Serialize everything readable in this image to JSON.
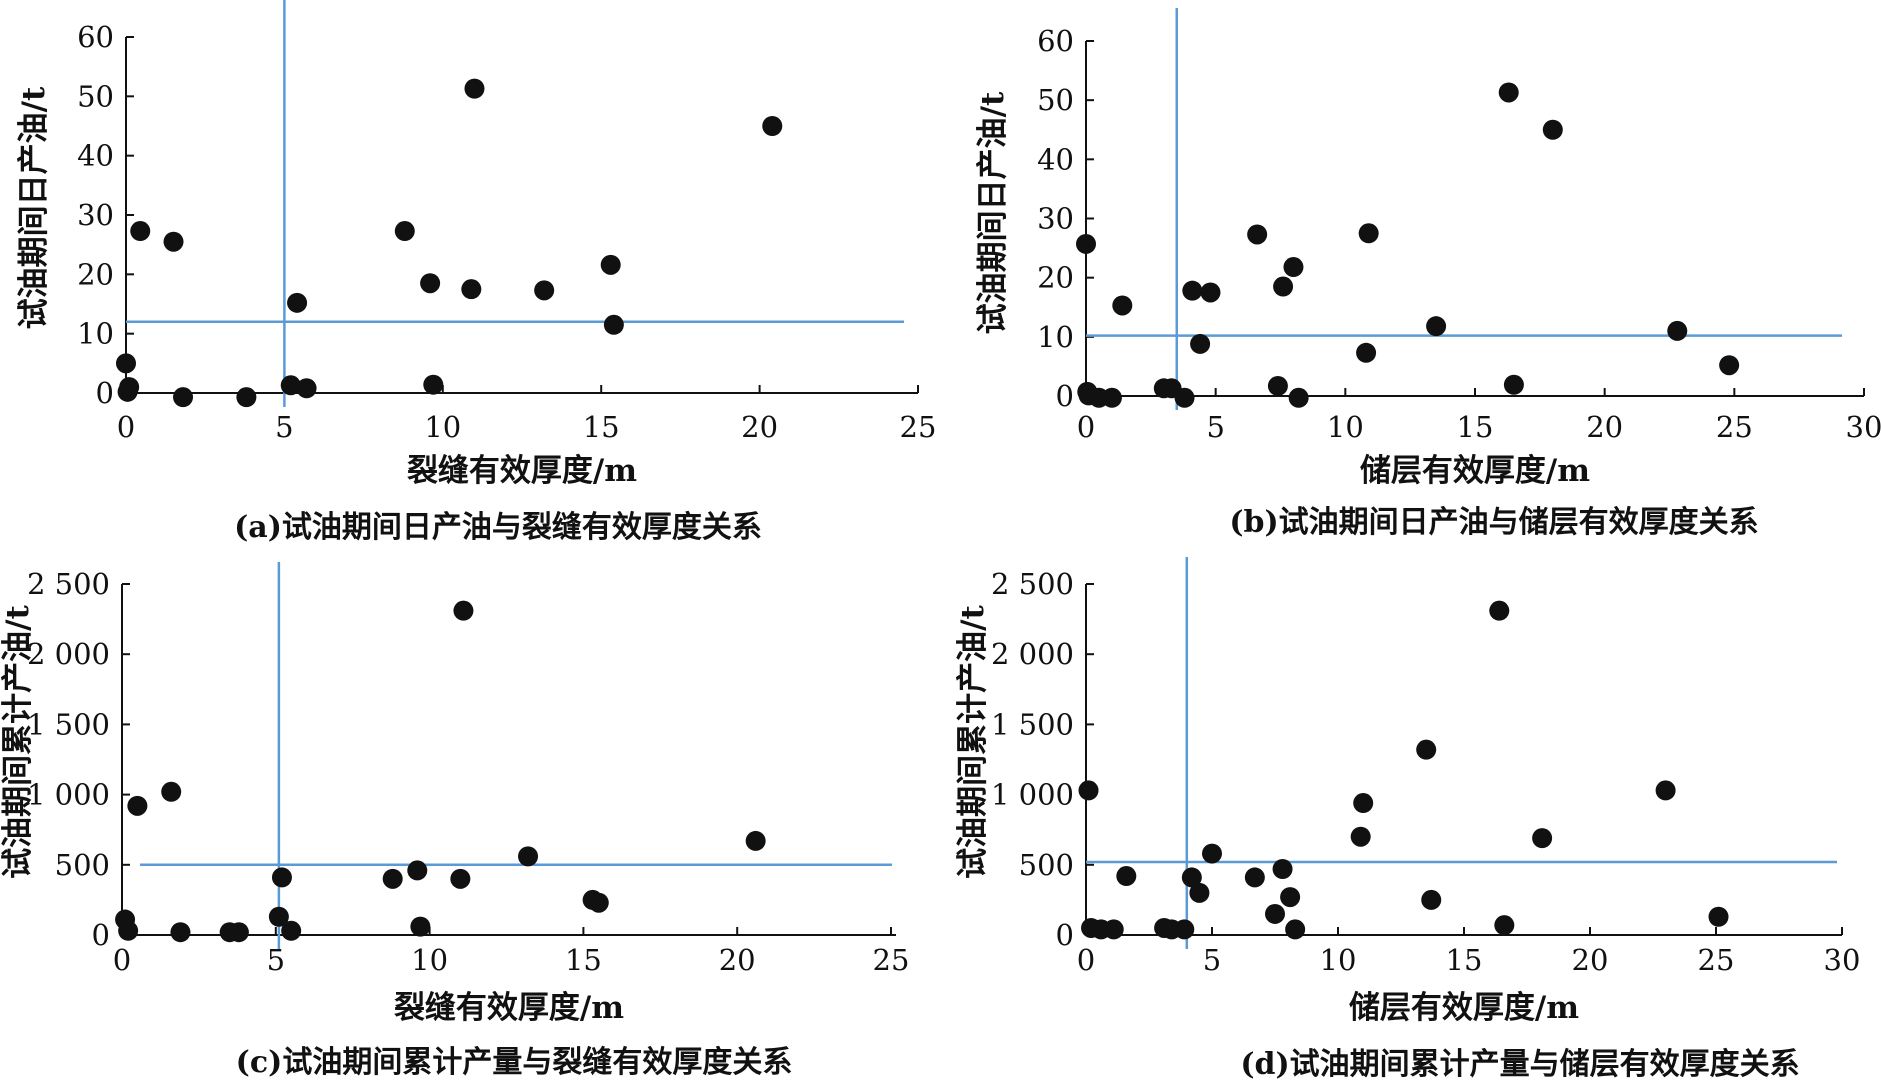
{
  "colors": {
    "points": "#111111",
    "axes": "#111111",
    "reference_lines": "#5b9bd5",
    "background": "#ffffff"
  },
  "chart_data": [
    {
      "id": "a",
      "type": "scatter",
      "caption": "(a)试油期间日产油与裂缝有效厚度关系",
      "xlabel": "裂缝有效厚度/m",
      "ylabel": "试油期间日产油/t",
      "xlim": [
        0,
        25
      ],
      "ylim": [
        0,
        60
      ],
      "x_ticks": [
        0,
        5,
        10,
        15,
        20,
        25
      ],
      "y_ticks": [
        0,
        10,
        20,
        30,
        40,
        50,
        60
      ],
      "x_tick_labels": [
        "0",
        "5",
        "10",
        "15",
        "20",
        "25"
      ],
      "y_tick_labels": [
        "0",
        "10",
        "20",
        "30",
        "40",
        "50",
        "60"
      ],
      "grid": false,
      "reference_lines": {
        "x": 5.0,
        "y": 12.0
      },
      "x": [
        0.0,
        0.05,
        0.1,
        0.45,
        1.5,
        1.8,
        3.8,
        5.2,
        5.4,
        5.7,
        8.8,
        9.6,
        9.7,
        10.9,
        11.0,
        13.2,
        15.3,
        15.4,
        20.4
      ],
      "y": [
        5.0,
        0.2,
        1.0,
        27.3,
        25.5,
        -0.7,
        -0.7,
        1.3,
        15.2,
        0.8,
        27.3,
        18.5,
        1.4,
        17.5,
        51.3,
        17.3,
        21.6,
        11.5,
        45.0
      ]
    },
    {
      "id": "b",
      "type": "scatter",
      "caption": "(b)试油期间日产油与储层有效厚度关系",
      "xlabel": "储层有效厚度/m",
      "ylabel": "试油期间日产油/t",
      "xlim": [
        0,
        30
      ],
      "ylim": [
        0,
        60
      ],
      "x_ticks": [
        0,
        5,
        10,
        15,
        20,
        25,
        30
      ],
      "y_ticks": [
        0,
        10,
        20,
        30,
        40,
        50,
        60
      ],
      "x_tick_labels": [
        "0",
        "5",
        "10",
        "15",
        "20",
        "25",
        "30"
      ],
      "y_tick_labels": [
        "0",
        "10",
        "20",
        "30",
        "40",
        "50",
        "60"
      ],
      "grid": false,
      "reference_lines": {
        "x": 3.5,
        "y": 10.2
      },
      "x": [
        0.0,
        0.05,
        0.1,
        0.5,
        1.0,
        1.4,
        3.0,
        3.3,
        3.8,
        4.1,
        4.4,
        4.8,
        6.6,
        7.4,
        7.6,
        8.0,
        8.2,
        10.8,
        10.9,
        13.5,
        16.3,
        16.5,
        18.0,
        22.8,
        24.8
      ],
      "y": [
        25.7,
        0.7,
        0.1,
        -0.3,
        -0.3,
        15.3,
        1.3,
        1.3,
        -0.3,
        17.8,
        8.8,
        17.5,
        27.3,
        1.7,
        18.5,
        21.8,
        -0.3,
        7.3,
        27.5,
        11.8,
        51.3,
        1.9,
        45.0,
        11.0,
        5.2
      ]
    },
    {
      "id": "c",
      "type": "scatter",
      "caption": "(c)试油期间累计产量与裂缝有效厚度关系",
      "xlabel": "裂缝有效厚度/m",
      "ylabel": "试油期间累计产油/t",
      "xlim": [
        0,
        25
      ],
      "ylim": [
        0,
        2500
      ],
      "x_ticks": [
        0,
        5,
        10,
        15,
        20,
        25
      ],
      "y_ticks": [
        0,
        500,
        1000,
        1500,
        2000,
        2500
      ],
      "x_tick_labels": [
        "0",
        "5",
        "10",
        "15",
        "20",
        "25"
      ],
      "y_tick_labels": [
        "0",
        "500",
        "1 000",
        "1 500",
        "2 000",
        "2 500"
      ],
      "grid": false,
      "reference_lines": {
        "x": 5.1,
        "y": 500
      },
      "x": [
        0.1,
        0.2,
        0.5,
        1.6,
        1.9,
        3.5,
        3.8,
        5.1,
        5.2,
        5.5,
        8.8,
        9.6,
        9.7,
        11.0,
        11.1,
        13.2,
        15.3,
        15.5,
        20.6
      ],
      "y": [
        110,
        30,
        920,
        1020,
        20,
        20,
        20,
        130,
        410,
        30,
        400,
        460,
        60,
        400,
        2310,
        560,
        250,
        230,
        670
      ]
    },
    {
      "id": "d",
      "type": "scatter",
      "caption": "(d)试油期间累计产量与储层有效厚度关系",
      "xlabel": "储层有效厚度/m",
      "ylabel": "试油期间累计产油/t",
      "xlim": [
        0,
        30
      ],
      "ylim": [
        0,
        2500
      ],
      "x_ticks": [
        0,
        5,
        10,
        15,
        20,
        25,
        30
      ],
      "y_ticks": [
        0,
        500,
        1000,
        1500,
        2000,
        2500
      ],
      "x_tick_labels": [
        "0",
        "5",
        "10",
        "15",
        "20",
        "25",
        "30"
      ],
      "y_tick_labels": [
        "0",
        "500",
        "1 000",
        "1 500",
        "2 000",
        "2 500"
      ],
      "grid": false,
      "reference_lines": {
        "x": 4.0,
        "y": 520
      },
      "x": [
        0.1,
        0.2,
        0.6,
        1.1,
        1.6,
        3.1,
        3.4,
        3.9,
        4.2,
        4.5,
        5.0,
        6.7,
        7.5,
        7.8,
        8.1,
        8.3,
        10.9,
        11.0,
        13.5,
        13.7,
        16.4,
        16.6,
        18.1,
        23.0,
        25.1
      ],
      "y": [
        1030,
        50,
        40,
        40,
        420,
        50,
        40,
        40,
        410,
        300,
        580,
        410,
        150,
        470,
        270,
        40,
        700,
        940,
        1320,
        250,
        2310,
        70,
        690,
        1030,
        130
      ]
    }
  ]
}
